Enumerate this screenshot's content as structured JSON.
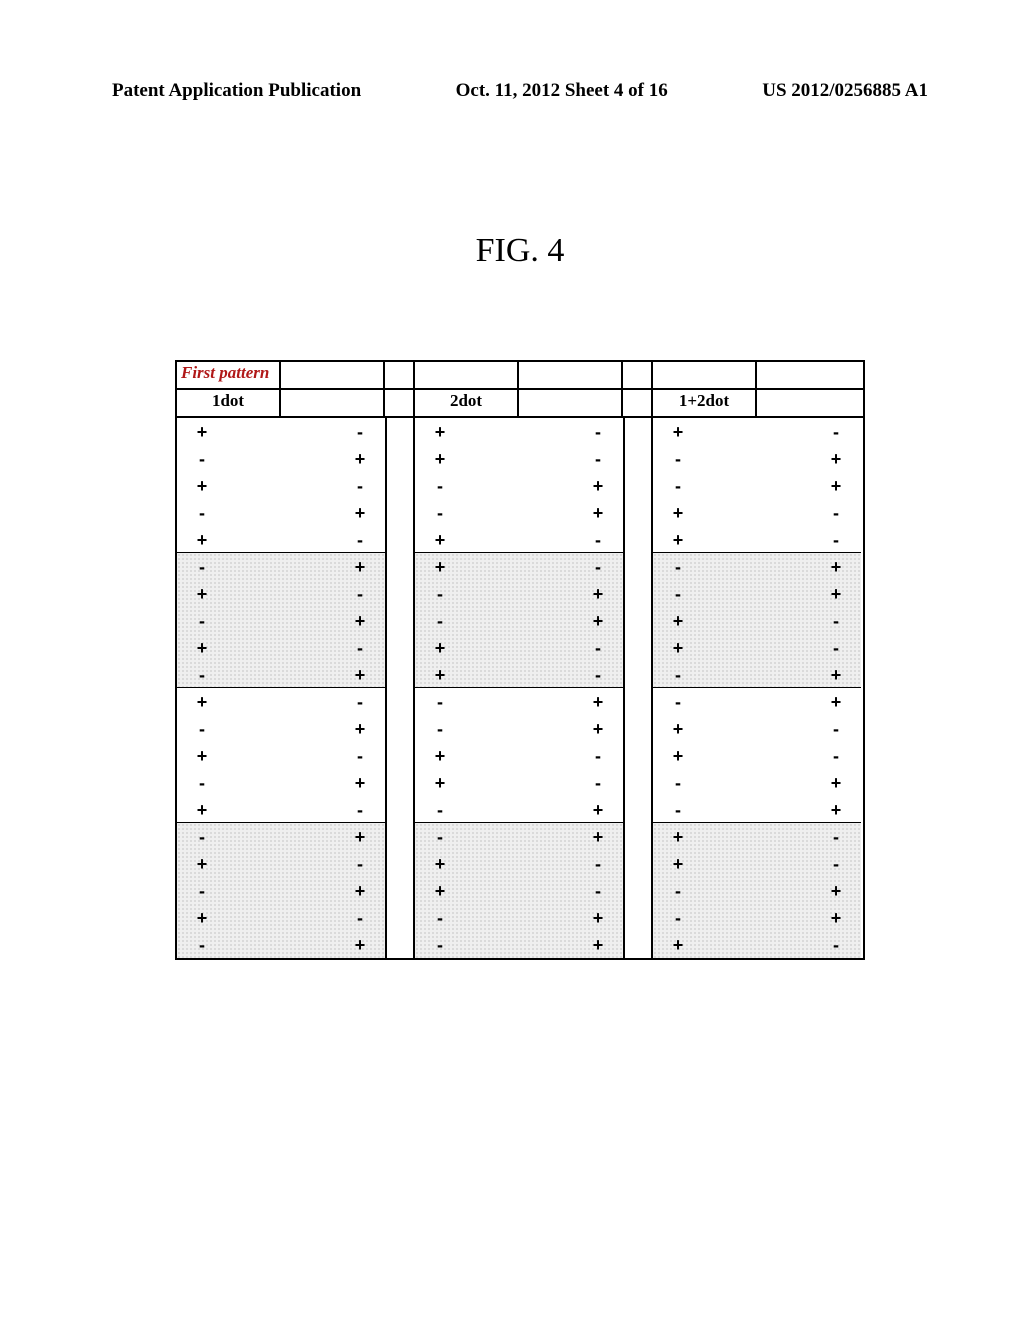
{
  "header": {
    "left": "Patent Application Publication",
    "mid": "Oct. 11, 2012  Sheet 4 of 16",
    "right": "US 2012/0256885 A1"
  },
  "figure": {
    "title": "FIG. 4",
    "pattern_label": "First pattern",
    "col_labels": [
      "1dot",
      "",
      "2dot",
      "",
      "1+2dot",
      ""
    ],
    "symbols": {
      "plus": "+",
      "minus": "-"
    },
    "blocks": {
      "col1": {
        "b1": [
          [
            "+",
            "-"
          ],
          [
            "-",
            "+"
          ],
          [
            "+",
            "-"
          ],
          [
            "-",
            "+"
          ],
          [
            "+",
            "-"
          ]
        ],
        "b2": [
          [
            "-",
            "+"
          ],
          [
            "+",
            "-"
          ],
          [
            "-",
            "+"
          ],
          [
            "+",
            "-"
          ],
          [
            "-",
            "+"
          ]
        ],
        "b3": [
          [
            "+",
            "-"
          ],
          [
            "-",
            "+"
          ],
          [
            "+",
            "-"
          ],
          [
            "-",
            "+"
          ],
          [
            "+",
            "-"
          ]
        ],
        "b4": [
          [
            "-",
            "+"
          ],
          [
            "+",
            "-"
          ],
          [
            "-",
            "+"
          ],
          [
            "+",
            "-"
          ],
          [
            "-",
            "+"
          ]
        ]
      },
      "col2": {
        "b1": [
          [
            "+",
            "-"
          ],
          [
            "+",
            "-"
          ],
          [
            "-",
            "+"
          ],
          [
            "-",
            "+"
          ],
          [
            "+",
            "-"
          ]
        ],
        "b2": [
          [
            "+",
            "-"
          ],
          [
            "-",
            "+"
          ],
          [
            "-",
            "+"
          ],
          [
            "+",
            "-"
          ],
          [
            "+",
            "-"
          ]
        ],
        "b3": [
          [
            "-",
            "+"
          ],
          [
            "-",
            "+"
          ],
          [
            "+",
            "-"
          ],
          [
            "+",
            "-"
          ],
          [
            "-",
            "+"
          ]
        ],
        "b4": [
          [
            "-",
            "+"
          ],
          [
            "+",
            "-"
          ],
          [
            "+",
            "-"
          ],
          [
            "-",
            "+"
          ],
          [
            "-",
            "+"
          ]
        ]
      },
      "col3": {
        "b1": [
          [
            "+",
            "-"
          ],
          [
            "-",
            "+"
          ],
          [
            "-",
            "+"
          ],
          [
            "+",
            "-"
          ],
          [
            "+",
            "-"
          ]
        ],
        "b2": [
          [
            "-",
            "+"
          ],
          [
            "-",
            "+"
          ],
          [
            "+",
            "-"
          ],
          [
            "+",
            "-"
          ],
          [
            "-",
            "+"
          ]
        ],
        "b3": [
          [
            "-",
            "+"
          ],
          [
            "+",
            "-"
          ],
          [
            "+",
            "-"
          ],
          [
            "-",
            "+"
          ],
          [
            "-",
            "+"
          ]
        ],
        "b4": [
          [
            "+",
            "-"
          ],
          [
            "+",
            "-"
          ],
          [
            "-",
            "+"
          ],
          [
            "-",
            "+"
          ],
          [
            "+",
            "-"
          ]
        ]
      }
    },
    "shaded_blocks": [
      2,
      4
    ],
    "colors": {
      "page_bg": "#ffffff",
      "border": "#000000",
      "label_red": "#b01818",
      "shade_bg": "#efefef",
      "shade_dot": "#9a9a9a"
    }
  }
}
